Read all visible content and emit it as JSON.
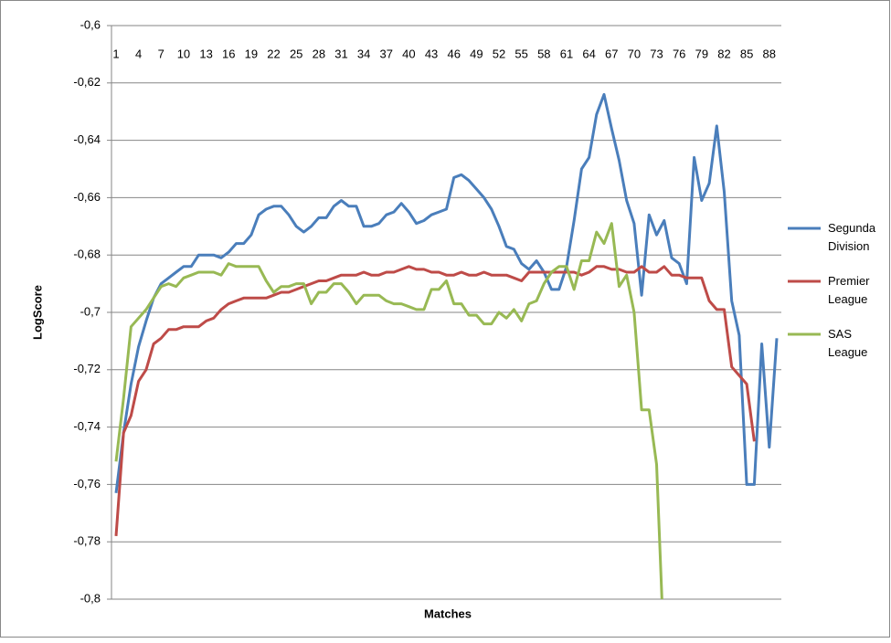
{
  "chart_data": {
    "type": "line",
    "x_label": "Matches",
    "y_label": "LogScore",
    "categories": [
      1,
      null,
      null,
      4,
      null,
      null,
      7,
      null,
      null,
      10,
      null,
      null,
      13,
      null,
      null,
      16,
      null,
      null,
      19,
      null,
      null,
      22,
      null,
      null,
      25,
      null,
      null,
      28,
      null,
      null,
      31,
      null,
      null,
      34,
      null,
      null,
      37,
      null,
      null,
      40,
      null,
      null,
      43,
      null,
      null,
      46,
      null,
      null,
      49,
      null,
      null,
      52,
      null,
      null,
      55,
      null,
      null,
      58,
      null,
      null,
      61,
      null,
      null,
      64,
      null,
      null,
      67,
      null,
      null,
      70,
      null,
      null,
      73,
      null,
      null,
      76,
      null,
      null,
      79,
      null,
      null,
      82,
      null,
      null,
      85,
      null,
      null,
      88,
      null
    ],
    "ylim": [
      -0.8,
      -0.6
    ],
    "yticks": [
      {
        "value": -0.8,
        "label": "-0,8"
      },
      {
        "value": -0.78,
        "label": "-0,78"
      },
      {
        "value": -0.76,
        "label": "-0,76"
      },
      {
        "value": -0.74,
        "label": "-0,74"
      },
      {
        "value": -0.72,
        "label": "-0,72"
      },
      {
        "value": -0.7,
        "label": "-0,7"
      },
      {
        "value": -0.68,
        "label": "-0,68"
      },
      {
        "value": -0.66,
        "label": "-0,66"
      },
      {
        "value": -0.64,
        "label": "-0,64"
      },
      {
        "value": -0.62,
        "label": "-0,62"
      },
      {
        "value": -0.6,
        "label": "-0,6"
      }
    ],
    "grid": true,
    "legend": "right",
    "series": [
      {
        "name": "Segunda Division",
        "color": "#4a7ebb",
        "values": [
          -0.763,
          -0.742,
          -0.725,
          -0.712,
          -0.703,
          -0.695,
          -0.69,
          -0.688,
          -0.686,
          -0.684,
          -0.684,
          -0.68,
          -0.68,
          -0.68,
          -0.681,
          -0.679,
          -0.676,
          -0.676,
          -0.673,
          -0.666,
          -0.664,
          -0.663,
          -0.663,
          -0.666,
          -0.67,
          -0.672,
          -0.67,
          -0.667,
          -0.667,
          -0.663,
          -0.661,
          -0.663,
          -0.663,
          -0.67,
          -0.67,
          -0.669,
          -0.666,
          -0.665,
          -0.662,
          -0.665,
          -0.669,
          -0.668,
          -0.666,
          -0.665,
          -0.664,
          -0.653,
          -0.652,
          -0.654,
          -0.657,
          -0.66,
          -0.664,
          -0.67,
          -0.677,
          -0.678,
          -0.683,
          -0.685,
          -0.682,
          -0.686,
          -0.692,
          -0.692,
          -0.684,
          -0.668,
          -0.65,
          -0.646,
          -0.631,
          -0.624,
          -0.636,
          -0.647,
          -0.661,
          -0.669,
          -0.694,
          -0.666,
          -0.673,
          -0.668,
          -0.681,
          -0.683,
          -0.69,
          -0.646,
          -0.661,
          -0.655,
          -0.635,
          -0.658,
          -0.696,
          -0.708,
          -0.76,
          -0.76,
          -0.711,
          -0.747,
          -0.709
        ]
      },
      {
        "name": "Premier League",
        "color": "#be4b48",
        "values": [
          -0.778,
          -0.742,
          -0.736,
          -0.724,
          -0.72,
          -0.711,
          -0.709,
          -0.706,
          -0.706,
          -0.705,
          -0.705,
          -0.705,
          -0.703,
          -0.702,
          -0.699,
          -0.697,
          -0.696,
          -0.695,
          -0.695,
          -0.695,
          -0.695,
          -0.694,
          -0.693,
          -0.693,
          -0.692,
          -0.691,
          -0.69,
          -0.689,
          -0.689,
          -0.688,
          -0.687,
          -0.687,
          -0.687,
          -0.686,
          -0.687,
          -0.687,
          -0.686,
          -0.686,
          -0.685,
          -0.684,
          -0.685,
          -0.685,
          -0.686,
          -0.686,
          -0.687,
          -0.687,
          -0.686,
          -0.687,
          -0.687,
          -0.686,
          -0.687,
          -0.687,
          -0.687,
          -0.688,
          -0.689,
          -0.686,
          -0.686,
          -0.686,
          -0.686,
          -0.686,
          -0.686,
          -0.686,
          -0.687,
          -0.686,
          -0.684,
          -0.684,
          -0.685,
          -0.685,
          -0.686,
          -0.686,
          -0.684,
          -0.686,
          -0.686,
          -0.684,
          -0.687,
          -0.687,
          -0.688,
          -0.688,
          -0.688,
          -0.696,
          -0.699,
          -0.699,
          -0.719,
          -0.722,
          -0.725,
          -0.745,
          null,
          null,
          null
        ]
      },
      {
        "name": "SAS League",
        "color": "#98b954",
        "values": [
          -0.752,
          -0.73,
          -0.705,
          -0.702,
          -0.699,
          -0.695,
          -0.691,
          -0.69,
          -0.691,
          -0.688,
          -0.687,
          -0.686,
          -0.686,
          -0.686,
          -0.687,
          -0.683,
          -0.684,
          -0.684,
          -0.684,
          -0.684,
          -0.689,
          -0.693,
          -0.691,
          -0.691,
          -0.69,
          -0.69,
          -0.697,
          -0.693,
          -0.693,
          -0.69,
          -0.69,
          -0.693,
          -0.697,
          -0.694,
          -0.694,
          -0.694,
          -0.696,
          -0.697,
          -0.697,
          -0.698,
          -0.699,
          -0.699,
          -0.692,
          -0.692,
          -0.689,
          -0.697,
          -0.697,
          -0.701,
          -0.701,
          -0.704,
          -0.704,
          -0.7,
          -0.702,
          -0.699,
          -0.703,
          -0.697,
          -0.696,
          -0.69,
          -0.686,
          -0.684,
          -0.684,
          -0.692,
          -0.682,
          -0.682,
          -0.672,
          -0.676,
          -0.669,
          -0.691,
          -0.687,
          -0.7,
          -0.734,
          -0.734,
          -0.753,
          -0.82,
          null,
          null,
          null,
          null,
          null,
          null,
          null,
          null,
          null,
          null,
          null,
          null,
          null,
          null,
          null
        ]
      }
    ]
  }
}
